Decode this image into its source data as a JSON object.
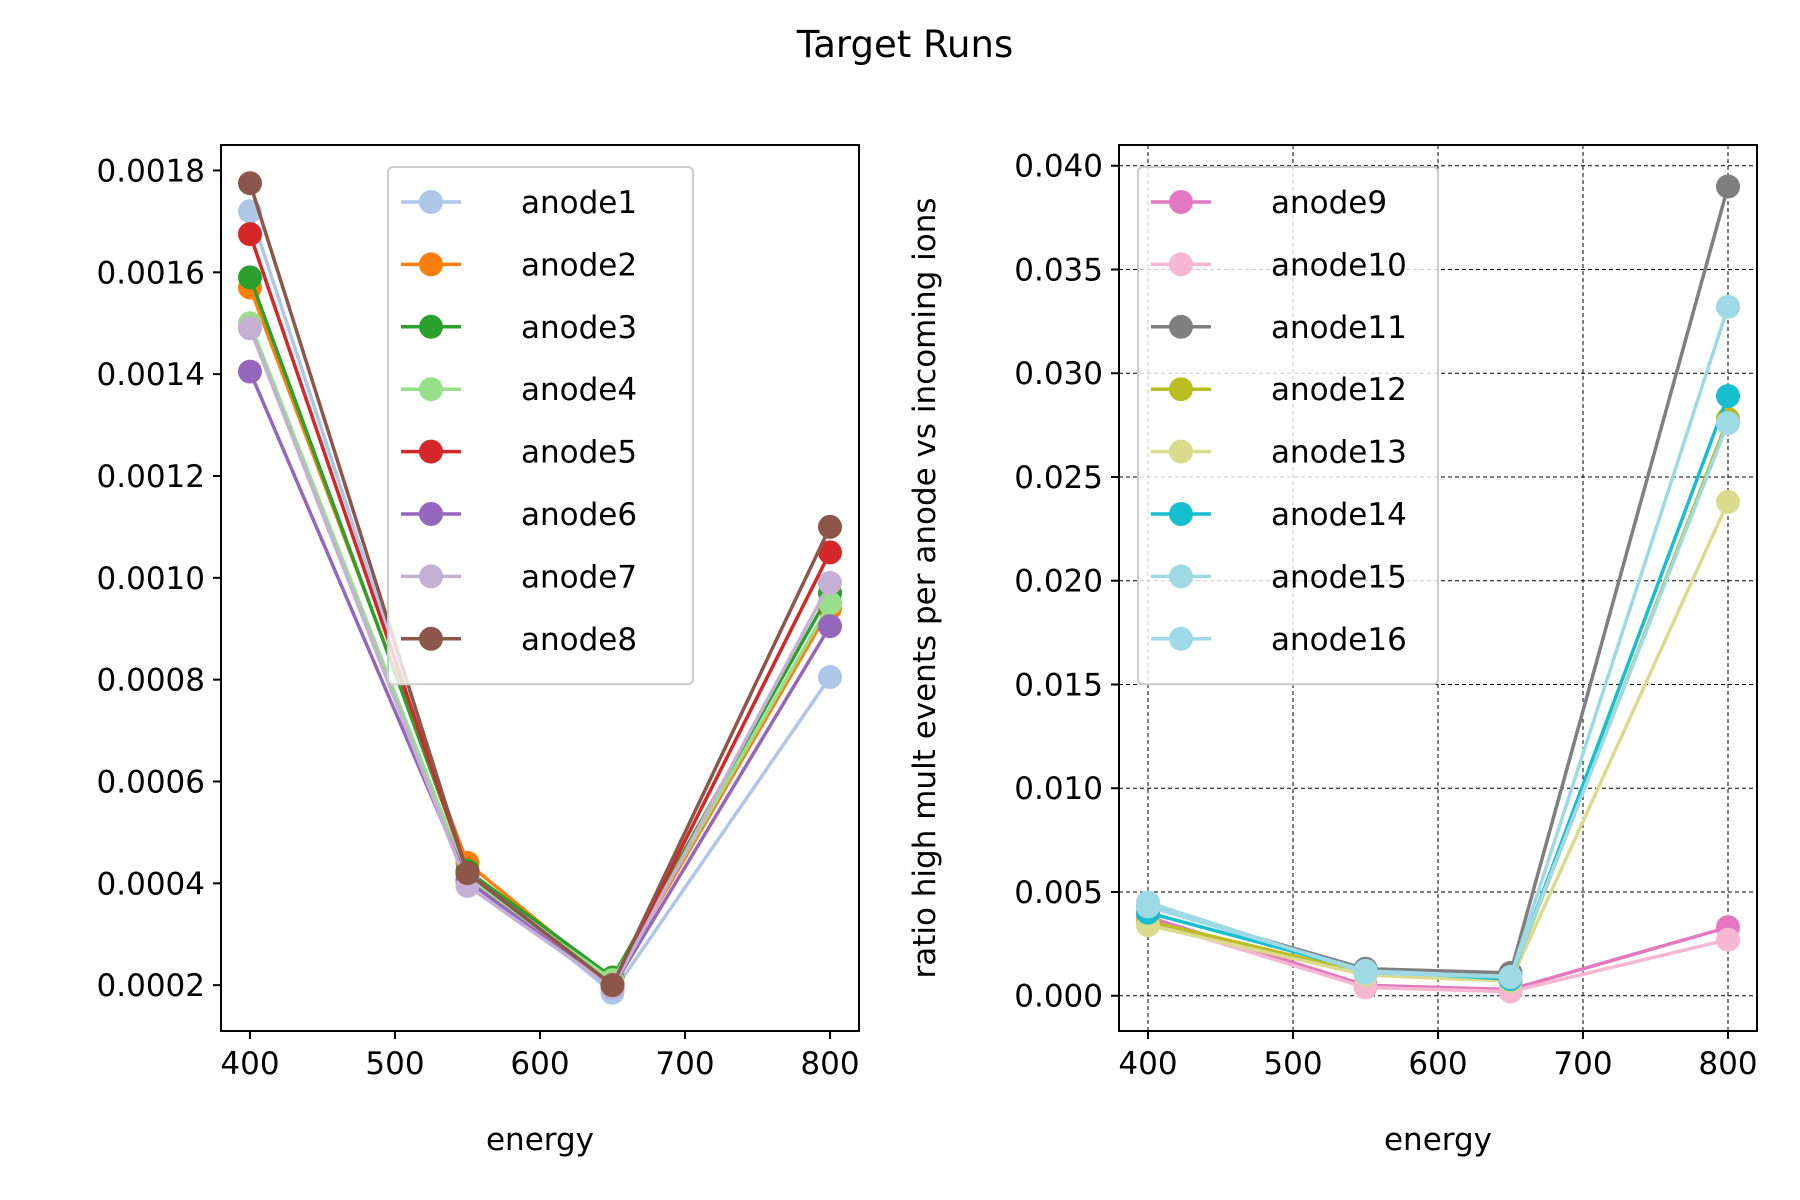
{
  "suptitle": "Target Runs",
  "chart_data": [
    {
      "type": "line",
      "xlabel": "energy",
      "ylabel": "",
      "x": [
        400,
        550,
        650,
        800
      ],
      "xlim": [
        380,
        820
      ],
      "ylim": [
        0.00011,
        0.00185
      ],
      "xticks": [
        400,
        500,
        600,
        700,
        800
      ],
      "yticks": [
        0.0002,
        0.0004,
        0.0006,
        0.0008,
        0.001,
        0.0012,
        0.0014,
        0.0016,
        0.0018
      ],
      "ytick_labels": [
        "0.0002",
        "0.0004",
        "0.0006",
        "0.0008",
        "0.0010",
        "0.0012",
        "0.0014",
        "0.0016",
        "0.0018"
      ],
      "grid": false,
      "legend_position": "top-center",
      "series": [
        {
          "name": "anode1",
          "color": "#aec7e8",
          "values": [
            0.00172,
            0.00042,
            0.000185,
            0.000805
          ]
        },
        {
          "name": "anode2",
          "color": "#ff7f0e",
          "values": [
            0.00157,
            0.00044,
            0.000205,
            0.00094
          ]
        },
        {
          "name": "anode3",
          "color": "#2ca02c",
          "values": [
            0.00159,
            0.000425,
            0.000215,
            0.00097
          ]
        },
        {
          "name": "anode4",
          "color": "#98df8a",
          "values": [
            0.0015,
            0.00041,
            0.00021,
            0.00095
          ]
        },
        {
          "name": "anode5",
          "color": "#d62728",
          "values": [
            0.001675,
            0.00042,
            0.0002,
            0.00105
          ]
        },
        {
          "name": "anode6",
          "color": "#9467bd",
          "values": [
            0.001405,
            0.000405,
            0.000195,
            0.000905
          ]
        },
        {
          "name": "anode7",
          "color": "#c5b0d5",
          "values": [
            0.00149,
            0.000395,
            0.000195,
            0.00099
          ]
        },
        {
          "name": "anode8",
          "color": "#8c564b",
          "values": [
            0.001775,
            0.00042,
            0.0002,
            0.0011
          ]
        }
      ]
    },
    {
      "type": "line",
      "xlabel": "energy",
      "ylabel": "ratio high mult events per anode  vs incoming ions",
      "x": [
        400,
        550,
        650,
        800
      ],
      "xlim": [
        380,
        820
      ],
      "ylim": [
        -0.0017,
        0.041
      ],
      "xticks": [
        400,
        500,
        600,
        700,
        800
      ],
      "yticks": [
        0.0,
        0.005,
        0.01,
        0.015,
        0.02,
        0.025,
        0.03,
        0.035,
        0.04
      ],
      "ytick_labels": [
        "0.000",
        "0.005",
        "0.010",
        "0.015",
        "0.020",
        "0.025",
        "0.030",
        "0.035",
        "0.040"
      ],
      "grid": true,
      "legend_position": "top-left",
      "series": [
        {
          "name": "anode9",
          "color": "#e377c2",
          "values": [
            0.0038,
            0.0005,
            0.0003,
            0.0033
          ]
        },
        {
          "name": "anode10",
          "color": "#f7b6d2",
          "values": [
            0.0036,
            0.0004,
            0.0002,
            0.0027
          ]
        },
        {
          "name": "anode11",
          "color": "#7f7f7f",
          "values": [
            0.0043,
            0.0013,
            0.0011,
            0.039
          ]
        },
        {
          "name": "anode12",
          "color": "#bcbd22",
          "values": [
            0.0036,
            0.0011,
            0.0008,
            0.0278
          ]
        },
        {
          "name": "anode13",
          "color": "#dbdb8d",
          "values": [
            0.0034,
            0.001,
            0.0007,
            0.0238
          ]
        },
        {
          "name": "anode14",
          "color": "#17becf",
          "values": [
            0.004,
            0.0012,
            0.0008,
            0.0289
          ]
        },
        {
          "name": "anode15",
          "color": "#9edae5",
          "values": [
            0.0043,
            0.0012,
            0.0009,
            0.0332
          ]
        },
        {
          "name": "anode16",
          "color": "#9edae5",
          "values": [
            0.0045,
            0.0011,
            0.0009,
            0.0276
          ]
        }
      ]
    }
  ]
}
